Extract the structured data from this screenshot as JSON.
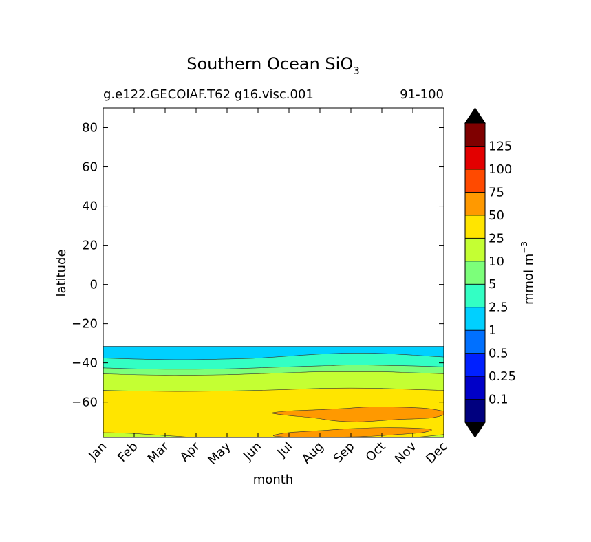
{
  "chart_data": {
    "type": "contourf",
    "title": "Southern Ocean SiO",
    "title_subscript": "3",
    "subtitle_left": "g.e122.GECOIAF.T62 g16.visc.001",
    "subtitle_right": "91-100",
    "xlabel": "month",
    "ylabel": "latitude",
    "x_categories": [
      "Jan",
      "Feb",
      "Mar",
      "Apr",
      "May",
      "Jun",
      "Jul",
      "Aug",
      "Sep",
      "Oct",
      "Nov",
      "Dec"
    ],
    "yticks": [
      80,
      60,
      40,
      20,
      0,
      -20,
      -40,
      -60
    ],
    "ytick_labels": [
      "80",
      "60",
      "40",
      "20",
      "0",
      "−20",
      "−40",
      "−60"
    ],
    "ylim": [
      -78,
      90
    ],
    "colorbar": {
      "label": "mmol m",
      "label_superscript": "−3",
      "levels": [
        "0.1",
        "0.25",
        "0.5",
        "1",
        "2.5",
        "5",
        "10",
        "25",
        "50",
        "75",
        "100",
        "125"
      ],
      "colors": [
        "#00007f",
        "#0000c8",
        "#0020ff",
        "#0070ff",
        "#00d0ff",
        "#33ffc4",
        "#7cff7a",
        "#c4ff33",
        "#ffe500",
        "#ff9900",
        "#ff4a00",
        "#e30000",
        "#7f0000"
      ],
      "extend": "both"
    },
    "regions": [
      {
        "level": "1 - 2.5",
        "color": "#00d0ff",
        "boundary_top": [
          -31.5,
          -31.5,
          -31.5,
          -31.5,
          -31.5,
          -31.5,
          -31.5,
          -31.5,
          -31.5,
          -31.5,
          -31.5,
          -31.5
        ]
      },
      {
        "level": "2.5 - 5",
        "color": "#33ffc4",
        "boundary_top": [
          -37.5,
          -38,
          -38.3,
          -38.3,
          -38,
          -37.5,
          -36.5,
          -35.5,
          -35,
          -35.2,
          -36,
          -37
        ]
      },
      {
        "level": "5 - 10",
        "color": "#7cff7a",
        "boundary_top": [
          -42.5,
          -43,
          -43.2,
          -43.2,
          -43,
          -42.5,
          -42,
          -41.5,
          -41,
          -41.2,
          -41.5,
          -42
        ]
      },
      {
        "level": "10 - 25",
        "color": "#c4ff33",
        "boundary_top": [
          -45.5,
          -46,
          -46.2,
          -46.2,
          -46,
          -45.5,
          -45,
          -44.5,
          -44.5,
          -44.5,
          -45,
          -45.5
        ]
      },
      {
        "level": "25 - 50",
        "color": "#ffe500",
        "boundary_top": [
          -54,
          -54.3,
          -54.5,
          -54.5,
          -54.3,
          -54,
          -53.5,
          -53,
          -52.8,
          -53,
          -53.5,
          -54
        ]
      }
    ],
    "deep_band": {
      "level": "10 - 25",
      "color": "#c4ff33",
      "boundary_top": [
        -75.5,
        -76,
        -77,
        -78,
        -78,
        -78,
        -78,
        -78,
        -78,
        -78,
        -78,
        -76.5
      ]
    },
    "blobs": [
      {
        "level": "50 - 75",
        "color": "#ff9900",
        "points": [
          [
            5.5,
            -65.3
          ],
          [
            6,
            -64.5
          ],
          [
            7,
            -63.8
          ],
          [
            7.8,
            -63.2
          ],
          [
            8.5,
            -62.5
          ],
          [
            9.5,
            -62.5
          ],
          [
            10.3,
            -63
          ],
          [
            10.8,
            -64
          ],
          [
            11.1,
            -65.5
          ],
          [
            10.6,
            -68
          ],
          [
            9.5,
            -68.8
          ],
          [
            8.3,
            -70
          ],
          [
            7.5,
            -69.5
          ],
          [
            6.8,
            -68
          ],
          [
            6,
            -66.8
          ],
          [
            5.5,
            -65.8
          ]
        ]
      },
      {
        "level": "50 - 75",
        "color": "#ff9900",
        "points": [
          [
            5.5,
            -77
          ],
          [
            6,
            -75.5
          ],
          [
            7,
            -74.5
          ],
          [
            8,
            -73.5
          ],
          [
            9,
            -73
          ],
          [
            10,
            -73.2
          ],
          [
            10.6,
            -74
          ],
          [
            10.3,
            -75.5
          ],
          [
            9.5,
            -76.5
          ],
          [
            8.5,
            -77.5
          ],
          [
            7.5,
            -77.8
          ],
          [
            6.5,
            -78
          ],
          [
            5.8,
            -77.7
          ]
        ]
      }
    ]
  }
}
